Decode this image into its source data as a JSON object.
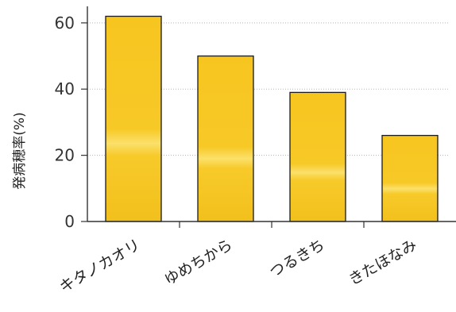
{
  "chart_data": {
    "type": "bar",
    "categories": [
      "キタノカオリ",
      "ゆめちから",
      "つるきち",
      "きたほなみ"
    ],
    "values": [
      62,
      50,
      39,
      26
    ],
    "title": "",
    "xlabel": "",
    "ylabel": "発病穂率(%)",
    "ylim": [
      0,
      65
    ],
    "yticks": [
      0,
      20,
      40,
      60
    ],
    "grid": true,
    "legend": "none",
    "colors": {
      "bar_fill": "#f6c622",
      "bar_edge": "#1a1a1a",
      "axis": "#333333",
      "grid": "#b5b5b5"
    }
  }
}
